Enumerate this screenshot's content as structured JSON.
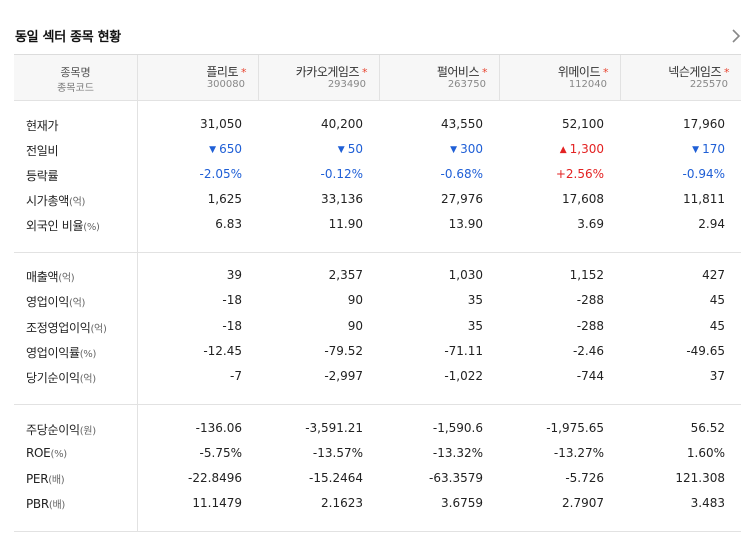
{
  "title": "동일 섹터 종목 현황",
  "more_icon": "chevron-right-icon",
  "header": {
    "label_line1": "종목명",
    "label_line2": "종목코드"
  },
  "companies": [
    {
      "name": "플리토",
      "code": "300080",
      "star": "*"
    },
    {
      "name": "카카오게임즈",
      "code": "293490",
      "star": "*"
    },
    {
      "name": "펄어비스",
      "code": "263750",
      "star": "*"
    },
    {
      "name": "위메이드",
      "code": "112040",
      "star": "*"
    },
    {
      "name": "넥슨게임즈",
      "code": "225570",
      "star": "*"
    }
  ],
  "colors": {
    "down": "#1f5fd6",
    "up": "#e32222",
    "star": "#e8432f"
  },
  "rows": [
    {
      "label": "현재가",
      "unit": "",
      "values": [
        "31,050",
        "40,200",
        "43,550",
        "52,100",
        "17,960"
      ]
    },
    {
      "label": "전일비",
      "unit": "",
      "values": [
        "650",
        "50",
        "300",
        "1,300",
        "170"
      ],
      "dirs": [
        "down",
        "down",
        "down",
        "up",
        "down"
      ],
      "arrows": [
        "▼",
        "▼",
        "▼",
        "▲",
        "▼"
      ]
    },
    {
      "label": "등락률",
      "unit": "",
      "values": [
        "-2.05%",
        "-0.12%",
        "-0.68%",
        "+2.56%",
        "-0.94%"
      ],
      "dirs": [
        "down",
        "down",
        "down",
        "up",
        "down"
      ]
    },
    {
      "label": "시가총액",
      "unit": "(억)",
      "values": [
        "1,625",
        "33,136",
        "27,976",
        "17,608",
        "11,811"
      ]
    },
    {
      "label": "외국인 비율",
      "unit": "(%)",
      "values": [
        "6.83",
        "11.90",
        "13.90",
        "3.69",
        "2.94"
      ]
    },
    {
      "label": "매출액",
      "unit": "(억)",
      "values": [
        "39",
        "2,357",
        "1,030",
        "1,152",
        "427"
      ]
    },
    {
      "label": "영업이익",
      "unit": "(억)",
      "values": [
        "-18",
        "90",
        "35",
        "-288",
        "45"
      ]
    },
    {
      "label": "조정영업이익",
      "unit": "(억)",
      "values": [
        "-18",
        "90",
        "35",
        "-288",
        "45"
      ]
    },
    {
      "label": "영업이익률",
      "unit": "(%)",
      "values": [
        "-12.45",
        "-79.52",
        "-71.11",
        "-2.46",
        "-49.65"
      ]
    },
    {
      "label": "당기순이익",
      "unit": "(억)",
      "values": [
        "-7",
        "-2,997",
        "-1,022",
        "-744",
        "37"
      ]
    },
    {
      "label": "주당순이익",
      "unit": "(원)",
      "values": [
        "-136.06",
        "-3,591.21",
        "-1,590.6",
        "-1,975.65",
        "56.52"
      ]
    },
    {
      "label": "ROE",
      "unit": "(%)",
      "values": [
        "-5.75%",
        "-13.57%",
        "-13.32%",
        "-13.27%",
        "1.60%"
      ]
    },
    {
      "label": "PER",
      "unit": "(배)",
      "values": [
        "-22.8496",
        "-15.2464",
        "-63.3579",
        "-5.726",
        "121.308"
      ]
    },
    {
      "label": "PBR",
      "unit": "(배)",
      "values": [
        "11.1479",
        "2.1623",
        "3.6759",
        "2.7907",
        "3.483"
      ]
    }
  ]
}
